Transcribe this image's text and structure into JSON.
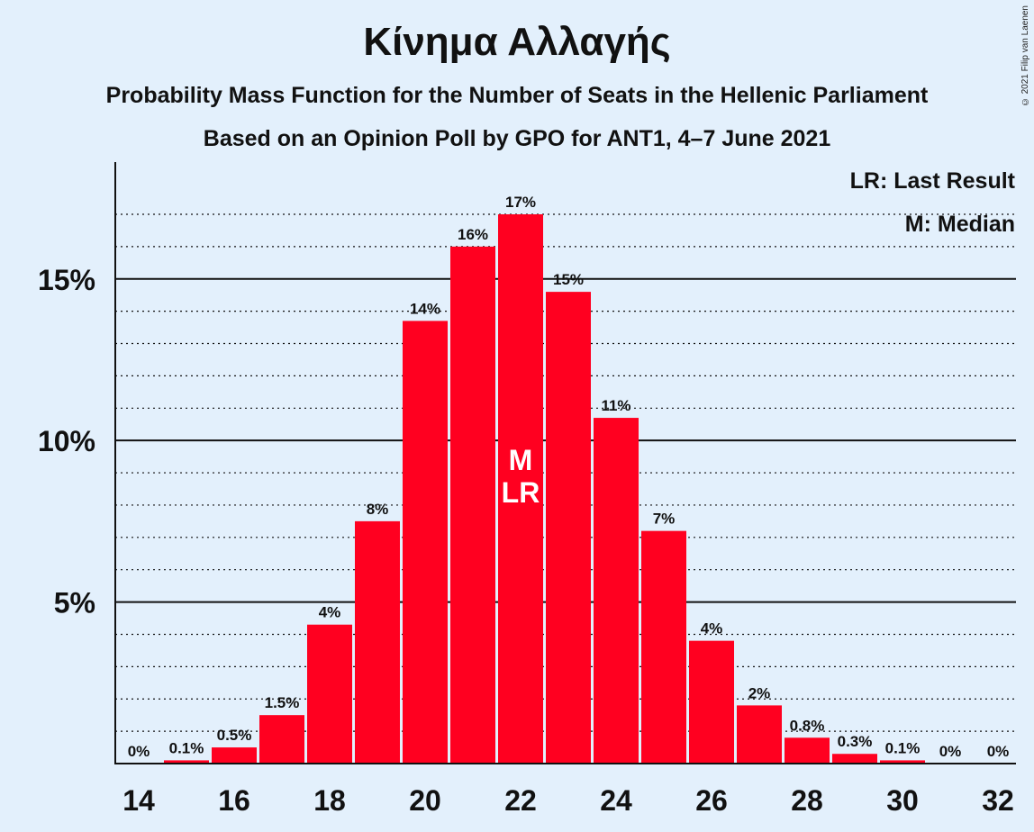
{
  "title": "Κίνημα Αλλαγής",
  "subtitle": "Probability Mass Function for the Number of Seats in the Hellenic Parliament",
  "subtitle2": "Based on an Opinion Poll by GPO for ANT1, 4–7 June 2021",
  "copyright": "© 2021 Filip van Laenen",
  "legend": {
    "lr": "LR: Last Result",
    "m": "M: Median"
  },
  "colors": {
    "bar": "#ff0020",
    "background": "#e3f0fc",
    "text": "#111111"
  },
  "chart_data": {
    "type": "bar",
    "title": "Κίνημα Αλλαγής",
    "x": [
      14,
      15,
      16,
      17,
      18,
      19,
      20,
      21,
      22,
      23,
      24,
      25,
      26,
      27,
      28,
      29,
      30,
      31,
      32
    ],
    "values": [
      0,
      0.1,
      0.5,
      1.5,
      4.3,
      7.5,
      13.7,
      16,
      17,
      14.6,
      10.7,
      7.2,
      3.8,
      1.8,
      0.8,
      0.3,
      0.1,
      0,
      0
    ],
    "labels": [
      "0%",
      "0.1%",
      "0.5%",
      "1.5%",
      "4%",
      "8%",
      "14%",
      "16%",
      "17%",
      "15%",
      "11%",
      "7%",
      "4%",
      "2%",
      "0.8%",
      "0.3%",
      "0.1%",
      "0%",
      "0%"
    ],
    "xticks": [
      14,
      16,
      18,
      20,
      22,
      24,
      26,
      28,
      30,
      32
    ],
    "yticks": [
      5,
      10,
      15
    ],
    "ytick_labels": [
      "5%",
      "10%",
      "15%"
    ],
    "ylim": [
      0,
      18.6
    ],
    "median": 22,
    "last_result": 22,
    "median_marker": "M",
    "last_result_marker": "LR",
    "grid": true,
    "legend_position": "top-right"
  }
}
